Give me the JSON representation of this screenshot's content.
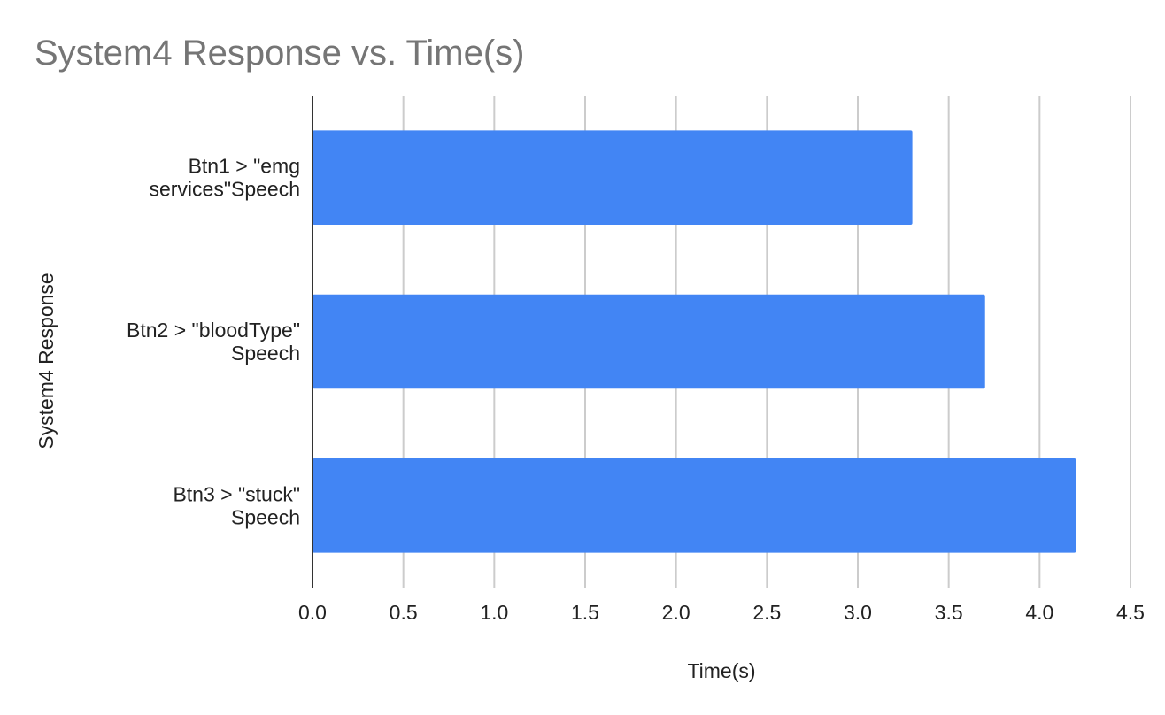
{
  "chart_data": {
    "type": "bar",
    "orientation": "horizontal",
    "title": "System4 Response vs. Time(s)",
    "xlabel": "Time(s)",
    "ylabel": "System4 Response",
    "categories": [
      [
        "Btn1 > \"emg",
        "services\"Speech"
      ],
      [
        "Btn2 > \"bloodType\"",
        "Speech"
      ],
      [
        "Btn3 > \"stuck\"",
        "Speech"
      ]
    ],
    "values": [
      3.3,
      3.7,
      4.2
    ],
    "xlim": [
      0,
      4.5
    ],
    "xticks": [
      "0.0",
      "0.5",
      "1.0",
      "1.5",
      "2.0",
      "2.5",
      "3.0",
      "3.5",
      "4.0",
      "4.5"
    ],
    "grid": true,
    "legend": "none",
    "colors": {
      "bar": "#4285f4",
      "grid": "#cccccc",
      "axis": "#333333",
      "title": "#757575",
      "text": "#222222"
    }
  }
}
